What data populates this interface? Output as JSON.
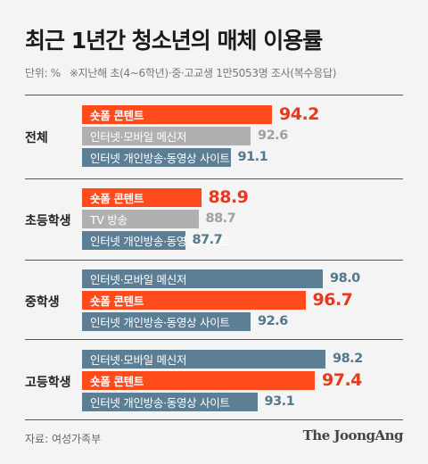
{
  "title": "최근 1년간 청소년의 매체 이용률",
  "unit_label": "단위: %",
  "note": "※지난해 초(4~6학년)·중·고교생 1만5053명 조사(복수응답)",
  "source": "자료: 여성가족부",
  "brand": "The JoongAng",
  "colors": {
    "short_form": "#ff4a1c",
    "short_form_value": "#e8391a",
    "blue_gray": "#5b7e94",
    "blue_gray_value": "#52788e",
    "gray": "#b0b0b0",
    "gray_value": "#a0a0a0",
    "track": "#dcdcdc"
  },
  "chart_data": {
    "type": "bar",
    "orientation": "horizontal",
    "title": "최근 1년간 청소년의 매체 이용률",
    "unit": "%",
    "xlim": [
      0,
      100
    ],
    "groups": [
      {
        "name": "전체",
        "bars": [
          {
            "label": "숏폼 콘텐트",
            "value": 94.2,
            "value_text": "94.2",
            "style": "short_form"
          },
          {
            "label": "인터넷·모바일 메신저",
            "value": 92.6,
            "value_text": "92.6",
            "style": "gray"
          },
          {
            "label": "인터넷 개인방송·동영상 사이트",
            "value": 91.1,
            "value_text": "91.1",
            "style": "blue_gray"
          }
        ]
      },
      {
        "name": "초등학생",
        "bars": [
          {
            "label": "숏폼 콘텐트",
            "value": 88.9,
            "value_text": "88.9",
            "style": "short_form"
          },
          {
            "label": "TV 방송",
            "value": 88.7,
            "value_text": "88.7",
            "style": "gray"
          },
          {
            "label": "인터넷 개인방송·동영상 사이트",
            "value": 87.7,
            "value_text": "87.7",
            "style": "blue_gray"
          }
        ]
      },
      {
        "name": "중학생",
        "bars": [
          {
            "label": "인터넷·모바일 메신저",
            "value": 98.0,
            "value_text": "98.0",
            "style": "blue_gray"
          },
          {
            "label": "숏폼 콘텐트",
            "value": 96.7,
            "value_text": "96.7",
            "style": "short_form"
          },
          {
            "label": "인터넷 개인방송·동영상 사이트",
            "value": 92.6,
            "value_text": "92.6",
            "style": "blue_gray"
          }
        ]
      },
      {
        "name": "고등학생",
        "bars": [
          {
            "label": "인터넷·모바일 메신저",
            "value": 98.2,
            "value_text": "98.2",
            "style": "blue_gray"
          },
          {
            "label": "숏폼 콘텐트",
            "value": 97.4,
            "value_text": "97.4",
            "style": "short_form"
          },
          {
            "label": "인터넷 개인방송·동영상 사이트",
            "value": 93.1,
            "value_text": "93.1",
            "style": "blue_gray"
          }
        ]
      }
    ]
  }
}
